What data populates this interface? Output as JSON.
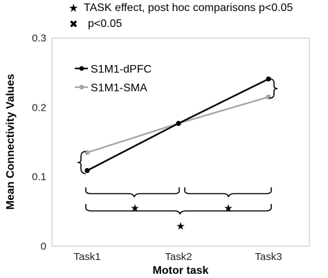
{
  "notes": {
    "star_symbol": "★",
    "star_text": "TASK effect, post hoc comparisons p<0.05",
    "cross_symbol": "✖",
    "cross_text": "p<0.05"
  },
  "chart_data": {
    "type": "line",
    "xlabel": "Motor task",
    "ylabel": "Mean Connectivity Values",
    "categories": [
      "Task1",
      "Task2",
      "Task3"
    ],
    "yticks": [
      "0",
      "0.1",
      "0.2",
      "0.3"
    ],
    "ylim": [
      0,
      0.3
    ],
    "grid": false,
    "legend_position": "top-left",
    "series": [
      {
        "name": "S1M1-dPFC",
        "values": [
          0.109,
          0.177,
          0.241
        ],
        "color": "#000000"
      },
      {
        "name": "S1M1-SMA",
        "values": [
          0.135,
          0.177,
          0.215
        ],
        "color": "#a6a6a6"
      }
    ],
    "significance_markers": {
      "task1_bracket": "",
      "task3_bracket": "",
      "task1_vs_task2": "★",
      "task2_vs_task3": "★",
      "task1_vs_task3": "★"
    }
  }
}
